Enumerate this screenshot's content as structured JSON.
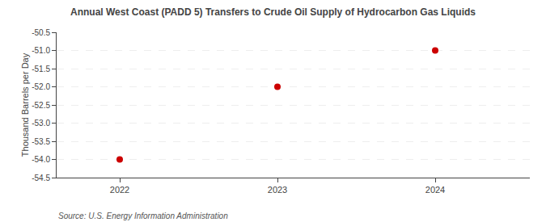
{
  "chart_data": {
    "type": "scatter",
    "title": "Annual West Coast (PADD 5) Transfers to Crude Oil Supply of Hydrocarbon Gas Liquids",
    "ylabel": "Thousand Barrels per Day",
    "source": "Source: U.S. Energy Information Administration",
    "x": [
      2022,
      2023,
      2024
    ],
    "values": [
      -54.0,
      -52.0,
      -51.0
    ],
    "color": "#cc0000",
    "marker": "circle",
    "xlim": [
      2021.6,
      2024.6
    ],
    "xticks": [
      2022,
      2023,
      2024
    ],
    "ylim": [
      -54.5,
      -50.5
    ],
    "yticks": [
      -54.5,
      {
        "value": -54.0,
        "label": "-54.0"
      },
      -53.5,
      {
        "value": -53.0,
        "label": "-53.0"
      },
      -52.5,
      {
        "value": -52.0,
        "label": "-52.0"
      },
      -51.5,
      {
        "value": -51.0,
        "label": "-51.0"
      },
      -50.5
    ],
    "grid": "y"
  }
}
